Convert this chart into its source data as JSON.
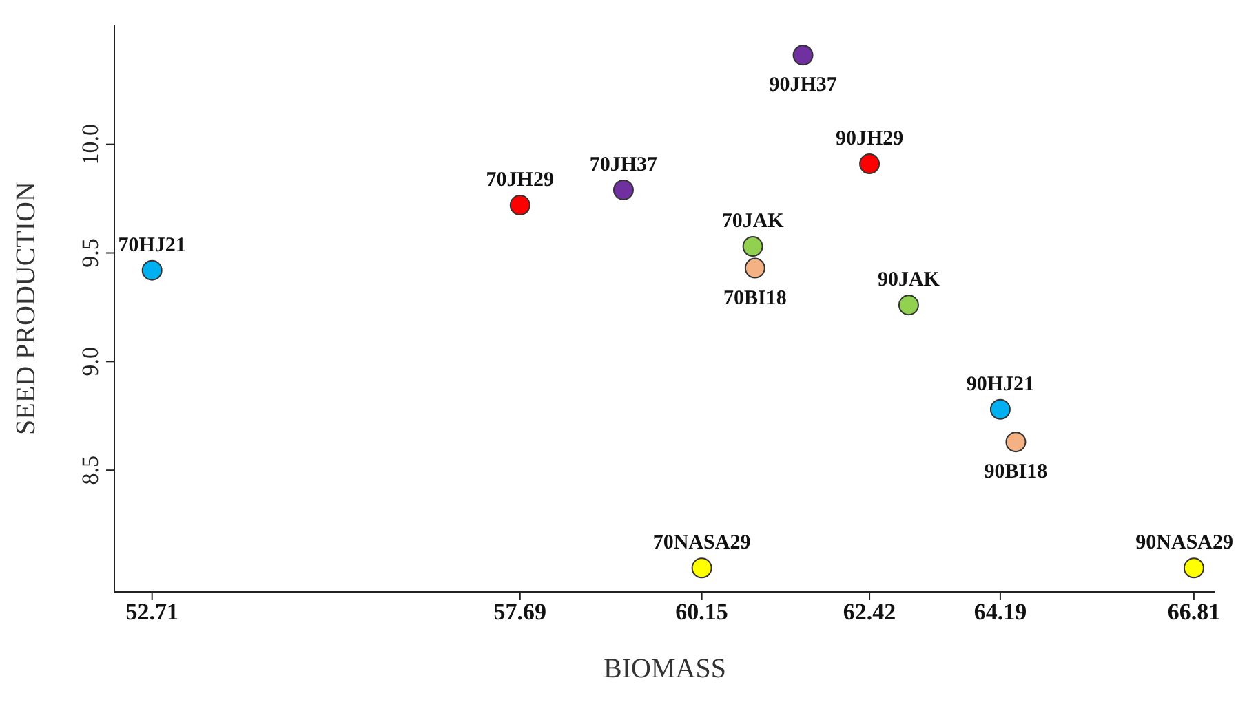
{
  "chart_data": {
    "type": "scatter",
    "xlabel": "BIOMASS",
    "ylabel": "SEED PRODUCTION",
    "xlim": [
      52.2,
      67.1
    ],
    "ylim": [
      7.94,
      10.55
    ],
    "xticks": [
      52.71,
      57.69,
      60.15,
      62.42,
      64.19,
      66.81
    ],
    "yticks": [
      8.5,
      {
        "value": 9,
        "label": "9.0"
      },
      9.5,
      {
        "value": 10,
        "label": "10.0"
      }
    ],
    "grid": false,
    "legend": false,
    "marker": "circle",
    "series": [
      {
        "color": "#7030a0",
        "x": [
          59.09,
          61.52
        ],
        "values": [
          9.79,
          10.41
        ]
      },
      {
        "color": "#ff0000",
        "x": [
          57.69,
          62.42
        ],
        "values": [
          9.72,
          9.91
        ]
      },
      {
        "color": "#00b0f0",
        "x": [
          52.71,
          64.19
        ],
        "values": [
          9.42,
          8.78
        ]
      },
      {
        "color": "#92d050",
        "x": [
          60.84,
          62.95
        ],
        "values": [
          9.53,
          9.26
        ]
      },
      {
        "color": "#f4b183",
        "x": [
          60.87,
          64.4
        ],
        "values": [
          9.43,
          8.63
        ]
      },
      {
        "color": "#ffff00",
        "x": [
          60.15,
          66.81
        ],
        "values": [
          8.05,
          8.05
        ]
      }
    ],
    "annotations": [
      {
        "text": "70JH37",
        "x": 59.09,
        "y": 9.79
      },
      {
        "text": "90JH37",
        "x": 61.52,
        "y": 10.41
      },
      {
        "text": "70JH29",
        "x": 57.69,
        "y": 9.72
      },
      {
        "text": "90JH29",
        "x": 62.42,
        "y": 9.91
      },
      {
        "text": "70HJ21",
        "x": 52.71,
        "y": 9.42
      },
      {
        "text": "90HJ21",
        "x": 64.19,
        "y": 8.78
      },
      {
        "text": "70JAK",
        "x": 60.84,
        "y": 9.53
      },
      {
        "text": "90JAK",
        "x": 62.95,
        "y": 9.26
      },
      {
        "text": "70BI18",
        "x": 60.87,
        "y": 9.43
      },
      {
        "text": "90BI18",
        "x": 64.4,
        "y": 8.63
      },
      {
        "text": "70NASA29",
        "x": 60.15,
        "y": 8.05
      },
      {
        "text": "90NASA29",
        "x": 66.81,
        "y": 8.05
      }
    ]
  }
}
